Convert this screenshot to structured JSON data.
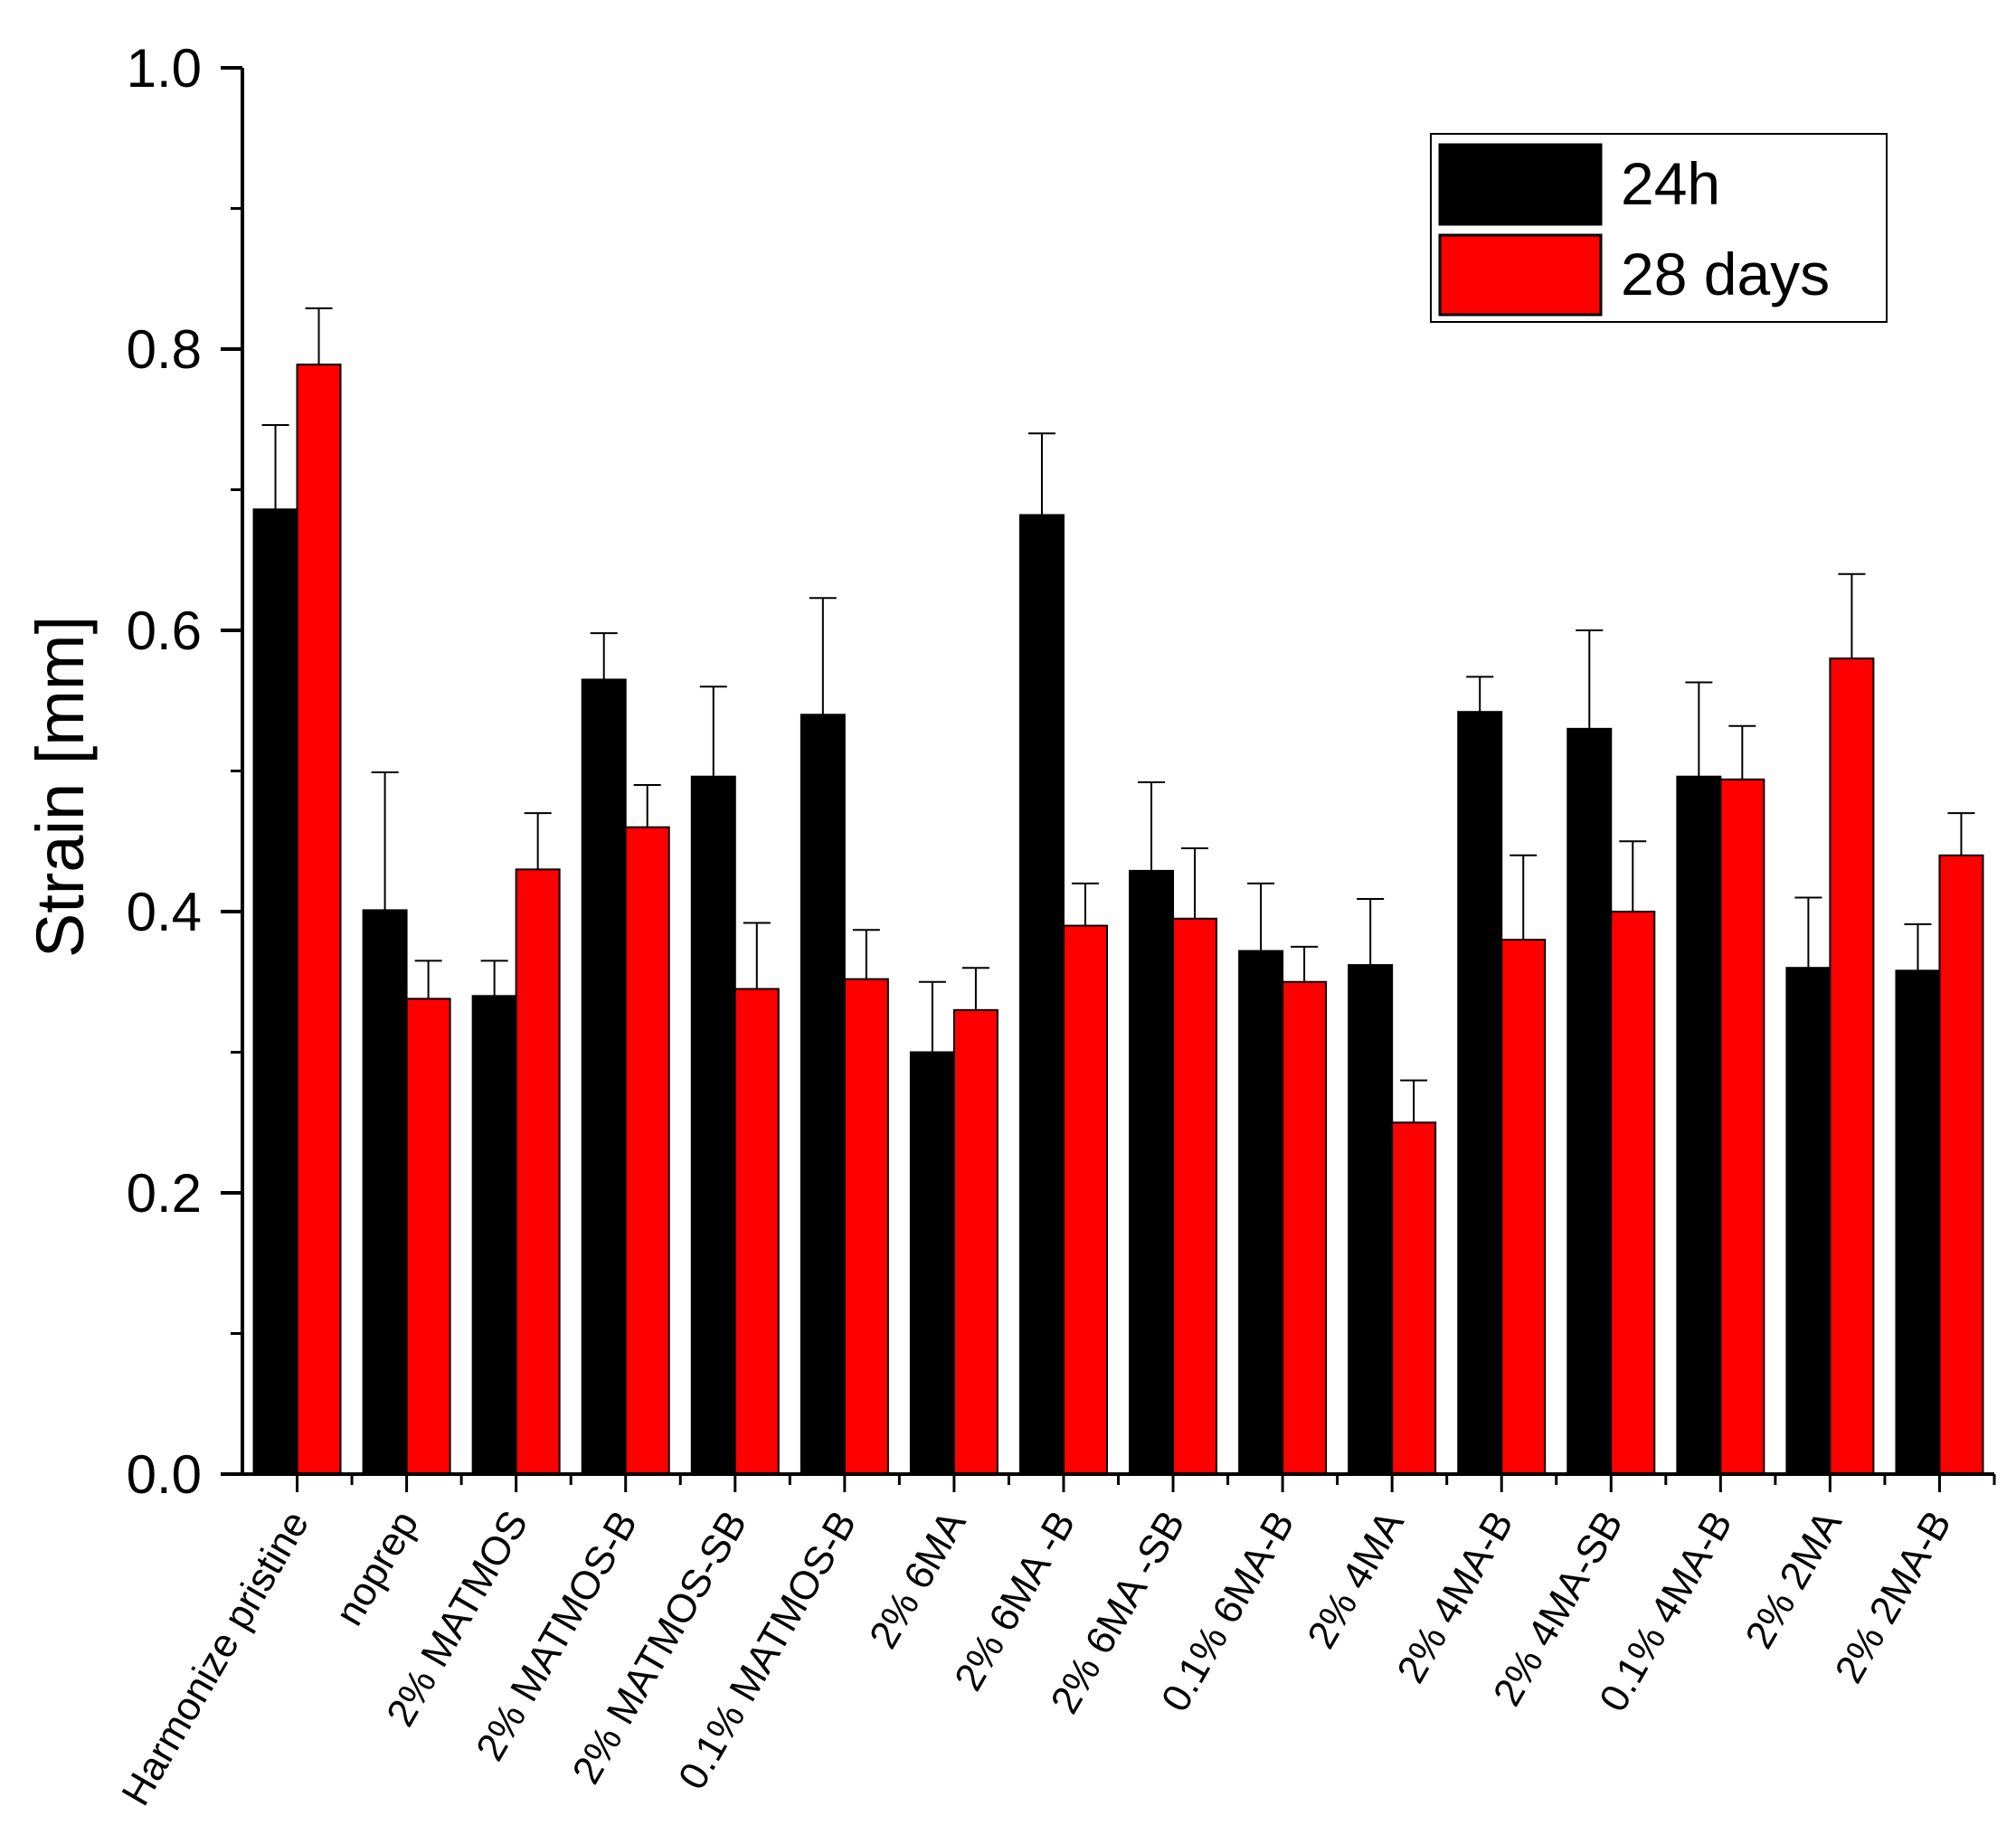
{
  "chart_data": {
    "type": "bar",
    "title": "",
    "xlabel": "",
    "ylabel": "Strain [mm]",
    "ylim": [
      0,
      1.0
    ],
    "yticks": [
      0.0,
      0.2,
      0.4,
      0.6,
      0.8,
      1.0
    ],
    "ytick_labels": [
      "0.0",
      "0.2",
      "0.4",
      "0.6",
      "0.8",
      "1.0"
    ],
    "legend_position": "top-right",
    "categories": [
      "Harmonize pristine",
      "noprep",
      "2% MATMOS",
      "2% MATMOS-B",
      "2% MATMOS-SB",
      "0.1% MATMOS-B",
      "2% 6MA",
      "2% 6MA -B",
      "2% 6MA -SB",
      "0.1% 6MA-B",
      "2% 4MA",
      "2% 4MA-B",
      "2% 4MA-SB",
      "0.1% 4MA-B",
      "2% 2MA",
      "2% 2MA-B"
    ],
    "series": [
      {
        "name": "24h",
        "color": "#000000",
        "values": [
          0.686,
          0.401,
          0.34,
          0.565,
          0.496,
          0.54,
          0.3,
          0.682,
          0.429,
          0.372,
          0.362,
          0.542,
          0.53,
          0.496,
          0.36,
          0.358
        ],
        "errors": [
          0.06,
          0.098,
          0.025,
          0.033,
          0.064,
          0.083,
          0.05,
          0.058,
          0.063,
          0.048,
          0.047,
          0.025,
          0.07,
          0.067,
          0.05,
          0.033
        ]
      },
      {
        "name": "28 days",
        "color": "#ff0000",
        "values": [
          0.789,
          0.338,
          0.43,
          0.46,
          0.345,
          0.352,
          0.33,
          0.39,
          0.395,
          0.35,
          0.25,
          0.38,
          0.4,
          0.494,
          0.58,
          0.44
        ],
        "errors": [
          0.04,
          0.027,
          0.04,
          0.03,
          0.047,
          0.035,
          0.03,
          0.03,
          0.05,
          0.025,
          0.03,
          0.06,
          0.05,
          0.038,
          0.06,
          0.03
        ]
      }
    ]
  }
}
